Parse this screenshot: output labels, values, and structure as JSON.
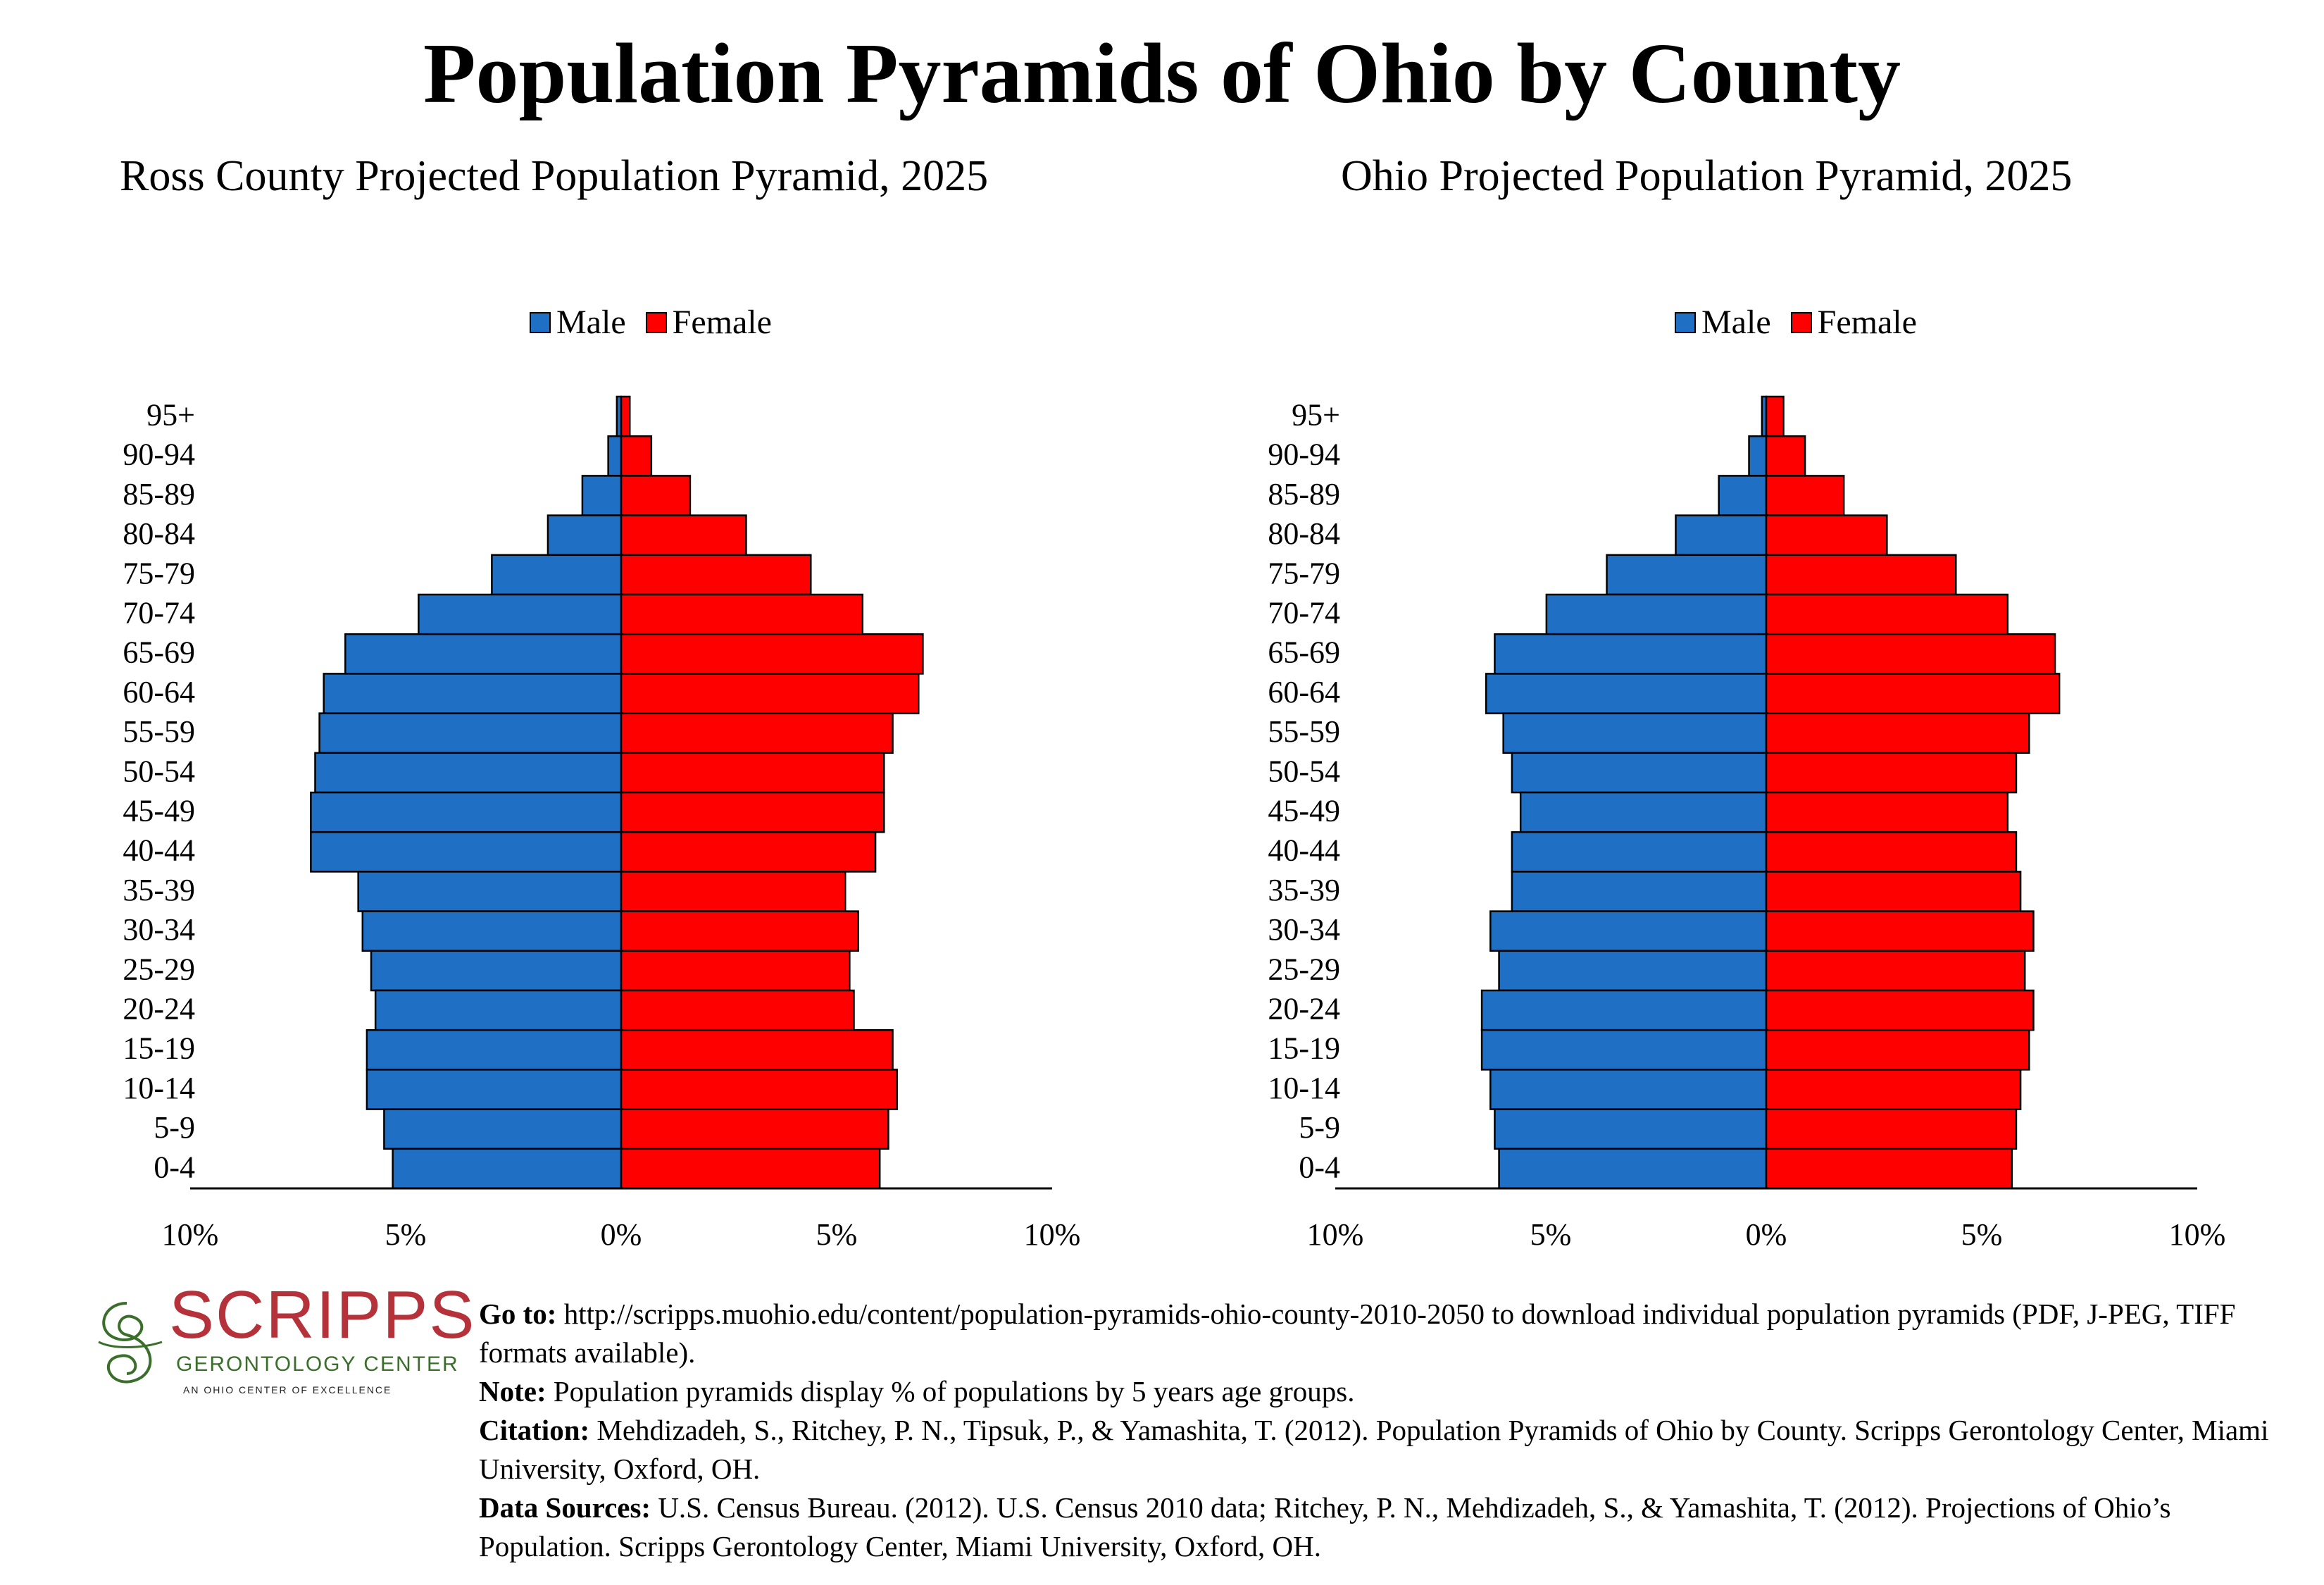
{
  "title": "Population Pyramids of Ohio by County",
  "legend": {
    "male": "Male",
    "female": "Female"
  },
  "colors": {
    "male": "#1f6fc5",
    "female": "#ff0000",
    "edge": "#000000"
  },
  "chart_data": [
    {
      "type": "bar",
      "title": "Ross County Projected Population Pyramid, 2025",
      "categories": [
        "95+",
        "90-94",
        "85-89",
        "80-84",
        "75-79",
        "70-74",
        "65-69",
        "60-64",
        "55-59",
        "50-54",
        "45-49",
        "40-44",
        "35-39",
        "30-34",
        "25-29",
        "20-24",
        "15-19",
        "10-14",
        "5-9",
        "0-4"
      ],
      "series": [
        {
          "name": "Male",
          "values": [
            0.1,
            0.3,
            0.9,
            1.7,
            3.0,
            4.7,
            6.4,
            6.9,
            7.0,
            7.1,
            7.2,
            7.2,
            6.1,
            6.0,
            5.8,
            5.7,
            5.9,
            5.9,
            5.5,
            5.3
          ]
        },
        {
          "name": "Female",
          "values": [
            0.2,
            0.7,
            1.6,
            2.9,
            4.4,
            5.6,
            7.0,
            6.9,
            6.3,
            6.1,
            6.1,
            5.9,
            5.2,
            5.5,
            5.3,
            5.4,
            6.3,
            6.4,
            6.2,
            6.0
          ]
        }
      ],
      "xlim": [
        -10,
        10
      ],
      "xticks": [
        "10%",
        "5%",
        "0%",
        "5%",
        "10%"
      ]
    },
    {
      "type": "bar",
      "title": "Ohio Projected Population Pyramid, 2025",
      "categories": [
        "95+",
        "90-94",
        "85-89",
        "80-84",
        "75-79",
        "70-74",
        "65-69",
        "60-64",
        "55-59",
        "50-54",
        "45-49",
        "40-44",
        "35-39",
        "30-34",
        "25-29",
        "20-24",
        "15-19",
        "10-14",
        "5-9",
        "0-4"
      ],
      "series": [
        {
          "name": "Male",
          "values": [
            0.1,
            0.4,
            1.1,
            2.1,
            3.7,
            5.1,
            6.3,
            6.5,
            6.1,
            5.9,
            5.7,
            5.9,
            5.9,
            6.4,
            6.2,
            6.6,
            6.6,
            6.4,
            6.3,
            6.2
          ]
        },
        {
          "name": "Female",
          "values": [
            0.4,
            0.9,
            1.8,
            2.8,
            4.4,
            5.6,
            6.7,
            6.8,
            6.1,
            5.8,
            5.6,
            5.8,
            5.9,
            6.2,
            6.0,
            6.2,
            6.1,
            5.9,
            5.8,
            5.7
          ]
        }
      ],
      "xlim": [
        -10,
        10
      ],
      "xticks": [
        "10%",
        "5%",
        "0%",
        "5%",
        "10%"
      ]
    }
  ],
  "logo": {
    "word": "SCRIPPS",
    "subtitle": "GERONTOLOGY CENTER",
    "tagline": "AN OHIO CENTER OF EXCELLENCE"
  },
  "footer": {
    "goto_label": "Go to:",
    "goto_text": " http://scripps.muohio.edu/content/population-pyramids-ohio-county-2010-2050 to download individual population pyramids (PDF, J-PEG, TIFF formats available).",
    "note_label": "Note:",
    "note_text": " Population pyramids display % of populations by 5 years age groups.",
    "citation_label": "Citation:",
    "citation_text": " Mehdizadeh, S., Ritchey, P. N., Tipsuk, P., & Yamashita, T. (2012). Population Pyramids of Ohio by County. Scripps Gerontology Center, Miami University, Oxford, OH.",
    "sources_label": "Data Sources:",
    "sources_text": " U.S. Census Bureau. (2012). U.S. Census 2010 data; Ritchey, P. N., Mehdizadeh, S., & Yamashita, T. (2012). Projections of Ohio’s Population. Scripps Gerontology Center, Miami University, Oxford, OH."
  }
}
